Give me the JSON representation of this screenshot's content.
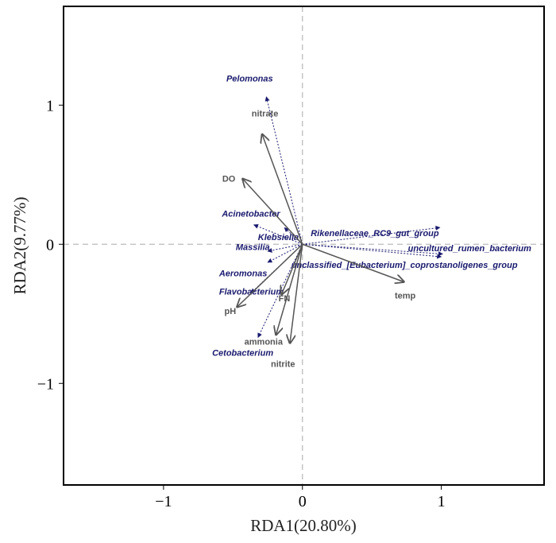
{
  "chart_data": {
    "type": "scatter",
    "subtype": "RDA biplot",
    "xlabel": "RDA1(20.80%)",
    "ylabel": "RDA2(9.77%)",
    "xlim": [
      -1.72,
      1.74
    ],
    "ylim": [
      -1.73,
      1.71
    ],
    "xticks": [
      {
        "v": -1,
        "label": "−1"
      },
      {
        "v": 0,
        "label": "0"
      },
      {
        "v": 1,
        "label": "1"
      }
    ],
    "yticks": [
      {
        "v": -1,
        "label": "−1"
      },
      {
        "v": 0,
        "label": "0"
      },
      {
        "v": 1,
        "label": "1"
      }
    ],
    "env_arrows": [
      {
        "name": "nitrate",
        "x": -0.29,
        "y": 0.79,
        "lx": -0.27,
        "ly": 0.92
      },
      {
        "name": "DO",
        "x": -0.43,
        "y": 0.47,
        "lx": -0.53,
        "ly": 0.45
      },
      {
        "name": "temp",
        "x": 0.73,
        "y": -0.27,
        "lx": 0.74,
        "ly": -0.39
      },
      {
        "name": "pH",
        "x": -0.47,
        "y": -0.45,
        "lx": -0.52,
        "ly": -0.5
      },
      {
        "name": "FN",
        "x": -0.15,
        "y": -0.36,
        "lx": -0.13,
        "ly": -0.41
      },
      {
        "name": "ammonia",
        "x": -0.19,
        "y": -0.65,
        "lx": -0.28,
        "ly": -0.72
      },
      {
        "name": "nitrite",
        "x": -0.09,
        "y": -0.71,
        "lx": -0.14,
        "ly": -0.88
      }
    ],
    "species_arrows": [
      {
        "name": "Pelomonas",
        "x": -0.26,
        "y": 1.06,
        "lx": -0.38,
        "ly": 1.17,
        "anchor": "middle"
      },
      {
        "name": "Acinetobacter",
        "x": -0.35,
        "y": 0.14,
        "lx": -0.58,
        "ly": 0.2,
        "anchor": "start"
      },
      {
        "name": "Klebsiella",
        "x": -0.13,
        "y": 0.12,
        "lx": -0.32,
        "ly": 0.03,
        "anchor": "start"
      },
      {
        "name": "Massilia",
        "x": -0.25,
        "y": -0.05,
        "lx": -0.48,
        "ly": -0.04,
        "anchor": "start"
      },
      {
        "name": "Aeromonas",
        "x": -0.25,
        "y": -0.13,
        "lx": -0.6,
        "ly": -0.23,
        "anchor": "start"
      },
      {
        "name": "Flavobacterium",
        "x": -0.37,
        "y": -0.35,
        "lx": -0.6,
        "ly": -0.36,
        "anchor": "start"
      },
      {
        "name": "Cetobacterium",
        "x": -0.32,
        "y": -0.67,
        "lx": -0.65,
        "ly": -0.8,
        "anchor": "start"
      },
      {
        "name": "Rikenellaceae_RC9_gut_group",
        "x": 0.99,
        "y": 0.12,
        "lx": 0.06,
        "ly": 0.06,
        "anchor": "start"
      },
      {
        "name": "uncultured_rumen_bacterium",
        "x": 1.01,
        "y": -0.07,
        "lx": 0.76,
        "ly": -0.05,
        "anchor": "start"
      },
      {
        "name": "unclassified_[Eubacterium]_coprostanoligenes_group",
        "x": 1.0,
        "y": -0.09,
        "lx": -0.08,
        "ly": -0.17,
        "anchor": "start"
      }
    ]
  }
}
